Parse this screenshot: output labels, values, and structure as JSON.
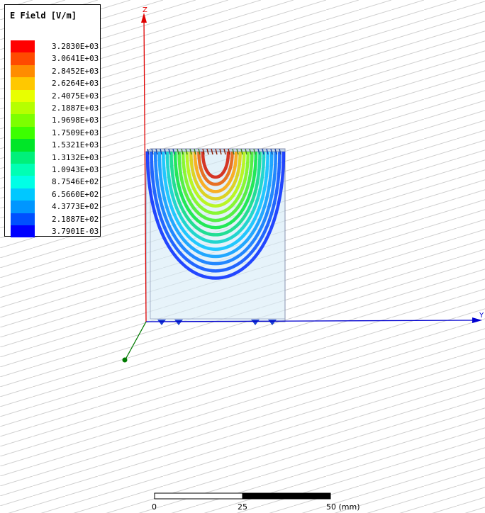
{
  "legend": {
    "title": "E Field [V/m]",
    "entries": [
      {
        "label": "3.2830E+03",
        "color": "#ff0000"
      },
      {
        "label": "3.0641E+03",
        "color": "#ff4a00"
      },
      {
        "label": "2.8452E+03",
        "color": "#ff8c00"
      },
      {
        "label": "2.6264E+03",
        "color": "#ffc800"
      },
      {
        "label": "2.4075E+03",
        "color": "#e8ff00"
      },
      {
        "label": "2.1887E+03",
        "color": "#b6ff00"
      },
      {
        "label": "1.9698E+03",
        "color": "#7dff00"
      },
      {
        "label": "1.7509E+03",
        "color": "#3cff00"
      },
      {
        "label": "1.5321E+03",
        "color": "#00e628"
      },
      {
        "label": "1.3132E+03",
        "color": "#00f07a"
      },
      {
        "label": "1.0943E+03",
        "color": "#00ffb4"
      },
      {
        "label": "8.7546E+02",
        "color": "#00ffe6"
      },
      {
        "label": "6.5660E+02",
        "color": "#00c8ff"
      },
      {
        "label": "4.3773E+02",
        "color": "#0096ff"
      },
      {
        "label": "2.1887E+02",
        "color": "#0050ff"
      },
      {
        "label": "3.7901E-03",
        "color": "#0000ff"
      }
    ]
  },
  "axes": {
    "z_label": "Z",
    "y_label": "Y",
    "z_color": "#e00000",
    "y_color": "#0000d0",
    "x_color": "#007a00"
  },
  "scale_bar": {
    "tick_0": "0",
    "tick_25": "25",
    "tick_50": "50 (mm)"
  }
}
